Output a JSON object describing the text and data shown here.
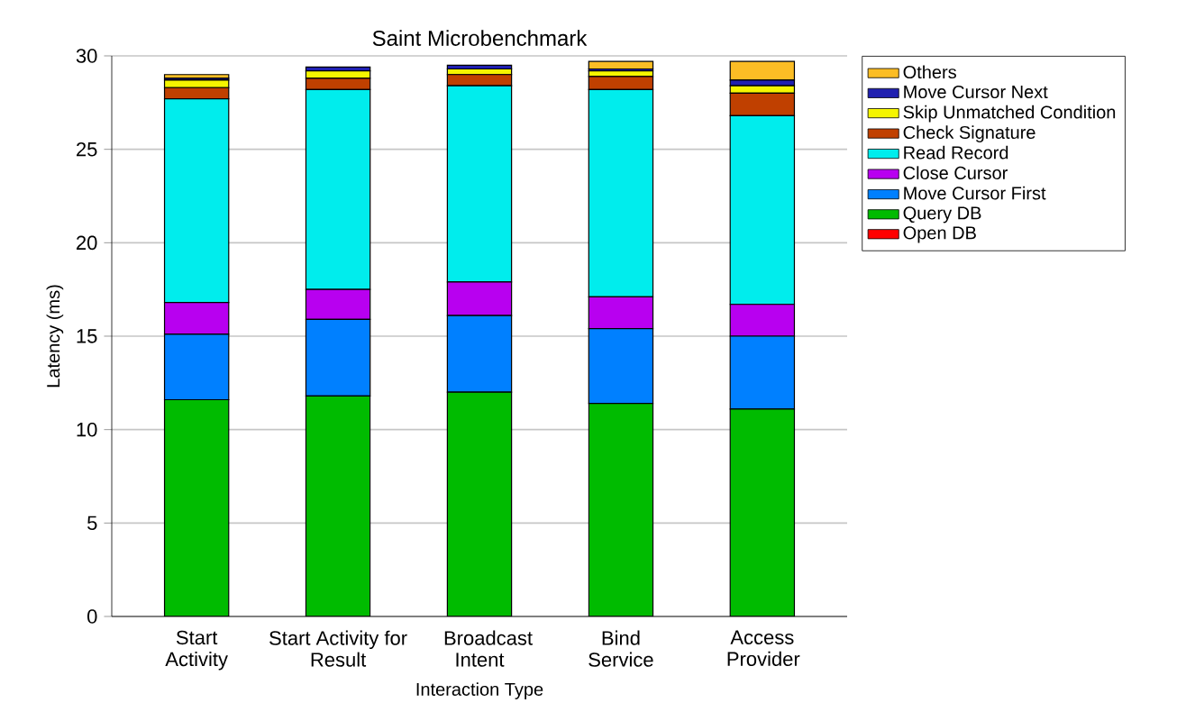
{
  "chart_data": {
    "type": "bar",
    "title": "Saint Microbenchmark",
    "xlabel": "Interaction Type",
    "ylabel": "Latency (ms)",
    "categories": [
      "Start Activity",
      "Start Activity for Result",
      "Broadcast Intent",
      "Bind Service",
      "Access Provider"
    ],
    "stacked": true,
    "grid": "y",
    "legend": "top right",
    "ylim": [
      0,
      30
    ],
    "yticks": [
      0,
      5,
      10,
      15,
      20,
      25,
      30
    ],
    "series": [
      {
        "name": "Open DB",
        "color": "#ff0000",
        "values": [
          0,
          0,
          0,
          0,
          0
        ]
      },
      {
        "name": "Query DB",
        "color": "#00bb00",
        "values": [
          11.6,
          11.8,
          12.0,
          11.4,
          11.1
        ]
      },
      {
        "name": "Move Cursor First",
        "color": "#0080ff",
        "values": [
          3.5,
          4.1,
          4.1,
          4.0,
          3.9
        ]
      },
      {
        "name": "Close Cursor",
        "color": "#b800f0",
        "values": [
          1.7,
          1.6,
          1.8,
          1.7,
          1.7
        ]
      },
      {
        "name": "Read Record",
        "color": "#00eded",
        "values": [
          10.9,
          10.7,
          10.5,
          11.1,
          10.1
        ]
      },
      {
        "name": "Check Signature",
        "color": "#c04000",
        "values": [
          0.6,
          0.6,
          0.6,
          0.7,
          1.2
        ]
      },
      {
        "name": "Skip Unmatched Condition",
        "color": "#f5f500",
        "values": [
          0.4,
          0.4,
          0.3,
          0.3,
          0.4
        ]
      },
      {
        "name": "Move Cursor Next",
        "color": "#2020b0",
        "values": [
          0.1,
          0.2,
          0.2,
          0.1,
          0.3
        ]
      },
      {
        "name": "Others",
        "color": "#fbbd25",
        "values": [
          0.2,
          null,
          null,
          0.4,
          1.0
        ]
      }
    ]
  }
}
